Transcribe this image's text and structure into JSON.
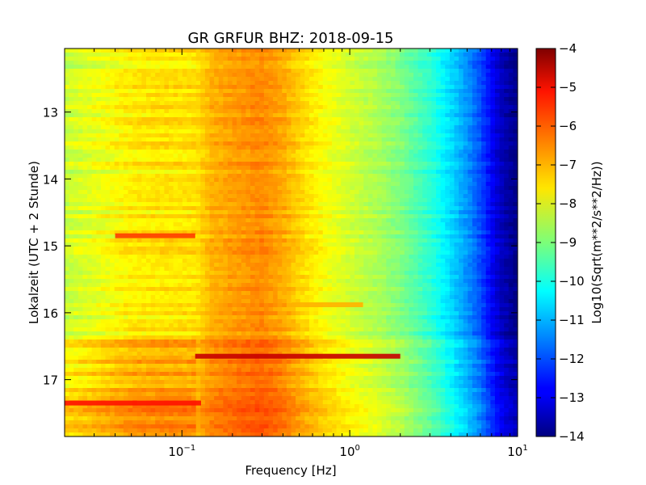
{
  "chart_data": {
    "type": "heatmap",
    "title": "GR GRFUR BHZ: 2018-09-15",
    "xlabel": "Frequency [Hz]",
    "ylabel": "Lokalzeit (UTC + 2 Stunde)",
    "x_scale": "log",
    "xlim": [
      0.02,
      10
    ],
    "ylim": [
      17.85,
      12.05
    ],
    "x_ticks": [
      {
        "value": 0.1,
        "base": "10",
        "exp": "−1"
      },
      {
        "value": 1,
        "base": "10",
        "exp": "0"
      },
      {
        "value": 10,
        "base": "10",
        "exp": "1"
      }
    ],
    "y_ticks": [
      13,
      14,
      15,
      16,
      17
    ],
    "colorbar": {
      "label": "Log10(Sqrt(m**2/s**2/Hz))",
      "colormap": "jet",
      "range": [
        -14,
        -4
      ],
      "ticks": [
        -4,
        -5,
        -6,
        -7,
        -8,
        -9,
        -10,
        -11,
        -12,
        -13,
        -14
      ]
    },
    "spectrum_profile": {
      "frequency_hz": [
        0.02,
        0.03,
        0.05,
        0.08,
        0.12,
        0.15,
        0.2,
        0.3,
        0.4,
        0.5,
        0.7,
        1.0,
        1.5,
        2.0,
        3.0,
        4.0,
        5.0,
        6.0,
        7.0,
        8.0,
        10.0
      ],
      "log_amplitude": [
        -8.3,
        -8.0,
        -7.6,
        -7.5,
        -7.5,
        -7.0,
        -6.8,
        -6.6,
        -6.9,
        -7.3,
        -7.8,
        -8.2,
        -8.6,
        -9.0,
        -9.8,
        -10.6,
        -11.3,
        -12.0,
        -12.8,
        -13.4,
        -14.0
      ]
    },
    "annotations": [
      {
        "time": 14.85,
        "freq_range": [
          0.04,
          0.12
        ],
        "log_amplitude": -5.8
      },
      {
        "time": 15.88,
        "freq_range": [
          0.45,
          1.2
        ],
        "log_amplitude": -7.0
      },
      {
        "time": 16.65,
        "freq_range": [
          0.12,
          2.0
        ],
        "log_amplitude": -4.7
      },
      {
        "time": 17.35,
        "freq_range": [
          0.02,
          0.13
        ],
        "log_amplitude": -5.4
      }
    ]
  }
}
